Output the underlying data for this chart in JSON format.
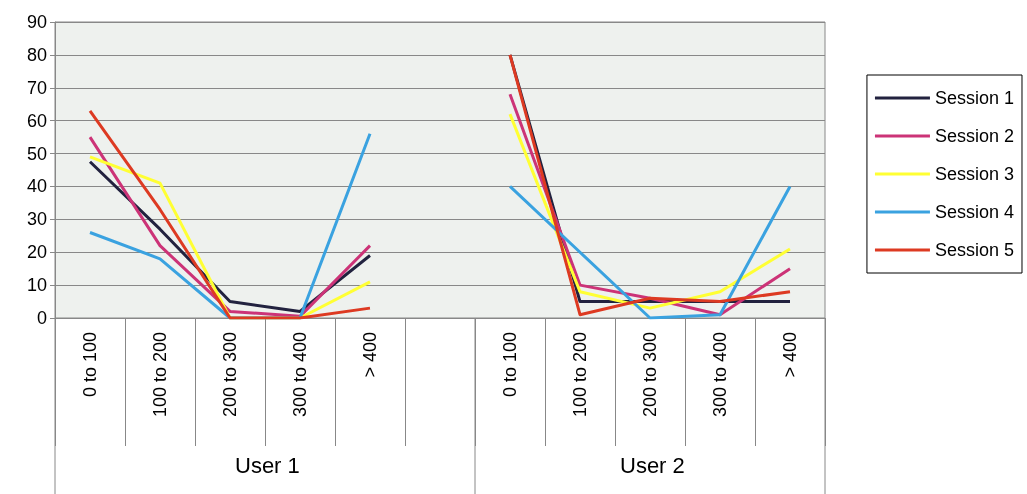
{
  "chart_data": {
    "type": "line",
    "categories": [
      "0 to 100",
      "100 to 200",
      "200 to 300",
      "300 to 400",
      "> 400",
      null,
      "0 to 100",
      "100 to 200",
      "200 to 300",
      "300 to 400",
      "> 400"
    ],
    "series": [
      {
        "name": "Session 1",
        "color": "#22223f",
        "values": [
          47.5,
          27,
          5,
          2,
          19,
          null,
          80,
          5,
          5,
          5,
          5
        ]
      },
      {
        "name": "Session 2",
        "color": "#cc3377",
        "values": [
          55,
          22,
          2,
          0.5,
          22,
          null,
          68,
          10,
          6,
          1,
          15
        ]
      },
      {
        "name": "Session 3",
        "color": "#ffff33",
        "values": [
          49,
          41,
          0,
          0,
          11,
          null,
          62,
          8,
          3,
          8,
          21
        ]
      },
      {
        "name": "Session 4",
        "color": "#3aa2e0",
        "values": [
          26,
          18,
          0,
          0,
          56,
          null,
          40,
          20,
          0,
          1,
          40
        ]
      },
      {
        "name": "Session 5",
        "color": "#dd3a22",
        "values": [
          63,
          33,
          0,
          0,
          3,
          null,
          80,
          1,
          6,
          5,
          8
        ]
      }
    ],
    "annotations": [
      "User 1",
      "User 2"
    ],
    "ylim": [
      0,
      90
    ],
    "yticks": [
      0,
      10,
      20,
      30,
      40,
      50,
      60,
      70,
      80,
      90
    ],
    "grid": "y",
    "legend": "right",
    "marker": "none",
    "line_style": "solid"
  }
}
